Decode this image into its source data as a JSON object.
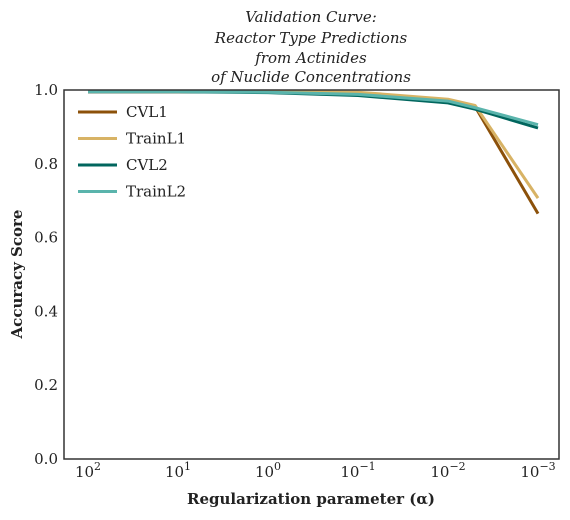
{
  "chart_data": {
    "type": "line",
    "title_lines": [
      "Validation Curve:",
      "Reactor Type Predictions",
      "from Actinides",
      "of Nuclide Concentrations"
    ],
    "xlabel": "Regularization parameter (α)",
    "ylabel": "Accuracy Score",
    "x_scale": "log-reversed",
    "x": [
      100,
      10,
      1,
      0.1,
      0.01,
      0.005,
      0.001
    ],
    "xticks": [
      {
        "value": 100,
        "base": "10",
        "exp": "2"
      },
      {
        "value": 10,
        "base": "10",
        "exp": "1"
      },
      {
        "value": 1,
        "base": "10",
        "exp": "0"
      },
      {
        "value": 0.1,
        "base": "10",
        "exp": "−1"
      },
      {
        "value": 0.01,
        "base": "10",
        "exp": "−2"
      },
      {
        "value": 0.001,
        "base": "10",
        "exp": "−3"
      }
    ],
    "ylim": [
      0.0,
      1.0
    ],
    "yticks": [
      "0.0",
      "0.2",
      "0.4",
      "0.6",
      "0.8",
      "1.0"
    ],
    "legend_position": "top-left",
    "series": [
      {
        "name": "CVL1",
        "color": "#8c510a",
        "values": [
          0.995,
          0.995,
          0.995,
          0.99,
          0.97,
          0.955,
          0.665
        ]
      },
      {
        "name": "TrainL1",
        "color": "#d8b365",
        "values": [
          0.996,
          0.996,
          0.996,
          0.994,
          0.975,
          0.958,
          0.707
        ]
      },
      {
        "name": "CVL2",
        "color": "#01665e",
        "values": [
          0.995,
          0.995,
          0.993,
          0.985,
          0.965,
          0.948,
          0.897
        ]
      },
      {
        "name": "TrainL2",
        "color": "#5ab4ac",
        "values": [
          0.996,
          0.996,
          0.994,
          0.988,
          0.97,
          0.952,
          0.906
        ]
      }
    ]
  }
}
